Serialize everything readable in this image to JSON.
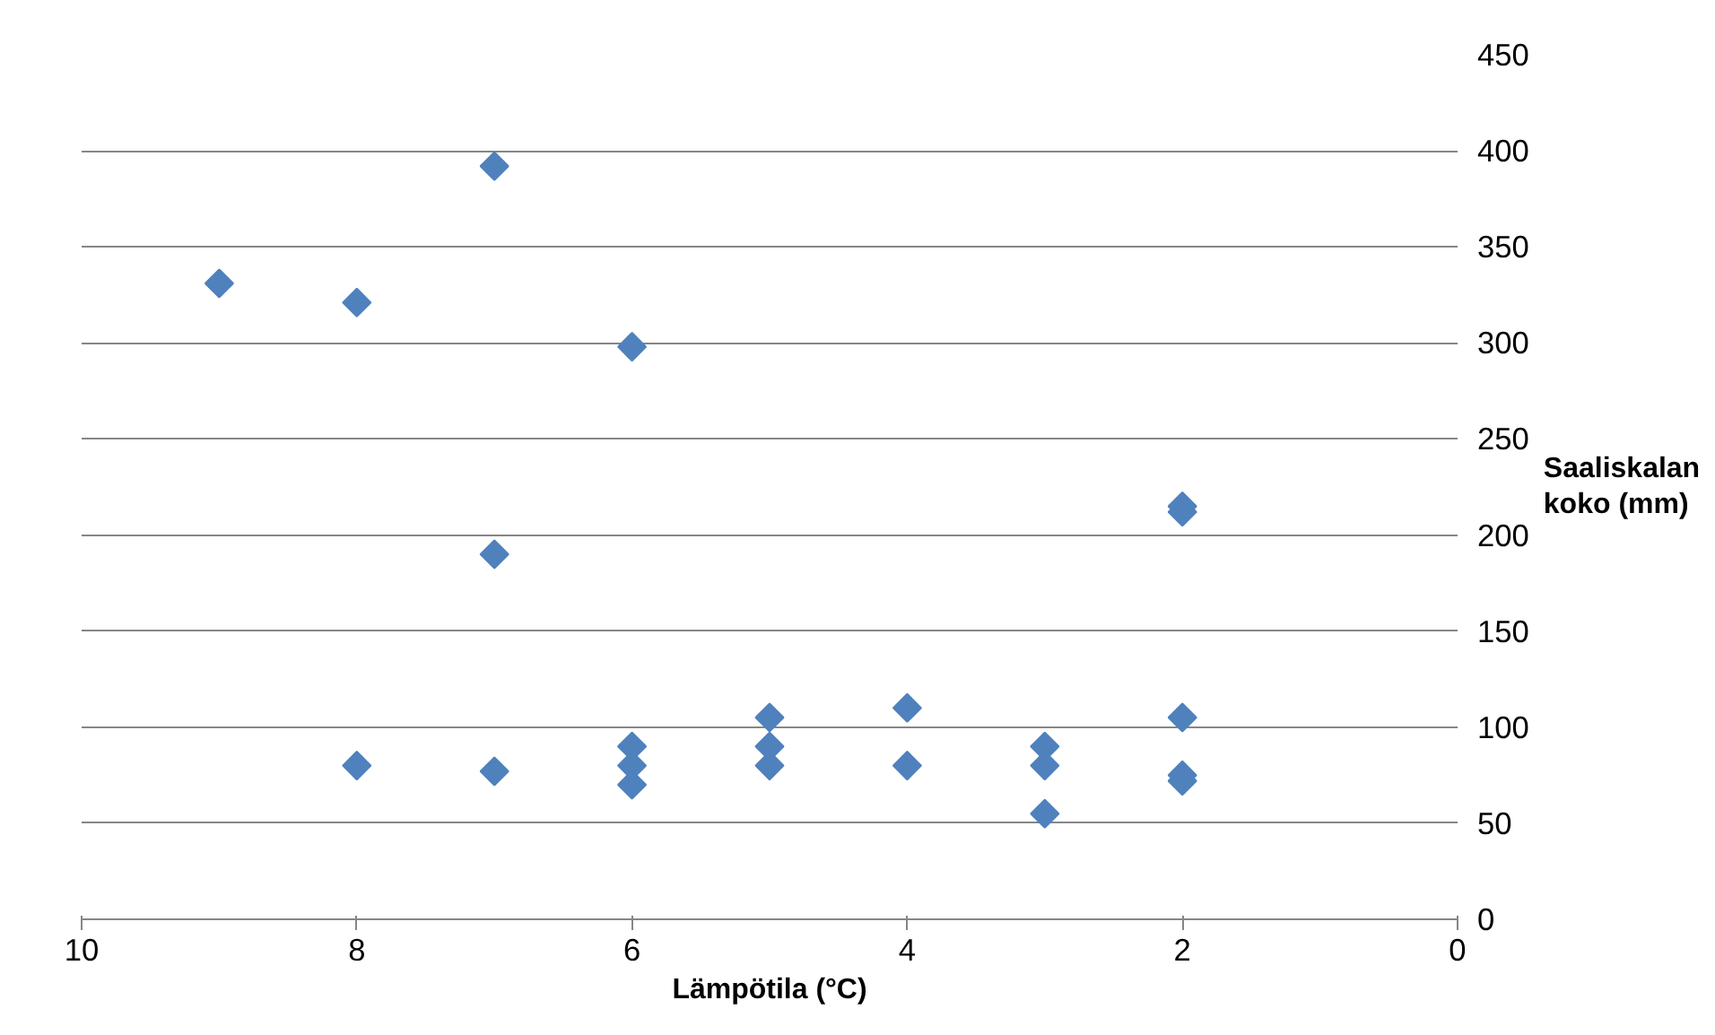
{
  "chart_data": {
    "type": "scatter",
    "xlabel": "Lämpötila (°C)",
    "ylabel": "Saaliskalan koko (mm)",
    "x": [
      9,
      8,
      7,
      6,
      7,
      2,
      2,
      8,
      7,
      6,
      6,
      6,
      5,
      5,
      5,
      4,
      4,
      3,
      3,
      3,
      2,
      2,
      2
    ],
    "series": [
      {
        "color": "#4f81bd",
        "values": [
          331,
          321,
          392,
          298,
          190,
          215,
          212,
          80,
          77,
          90,
          80,
          70,
          105,
          90,
          80,
          110,
          80,
          90,
          80,
          55,
          105,
          75,
          72
        ]
      }
    ],
    "xlim": [
      10,
      0
    ],
    "xticks": [
      10,
      8,
      6,
      4,
      2,
      0
    ],
    "ylim": [
      0,
      450
    ],
    "yticks": [
      0,
      50,
      100,
      150,
      200,
      250,
      300,
      350,
      400,
      450
    ],
    "grid": "y",
    "marker": "diamond"
  }
}
